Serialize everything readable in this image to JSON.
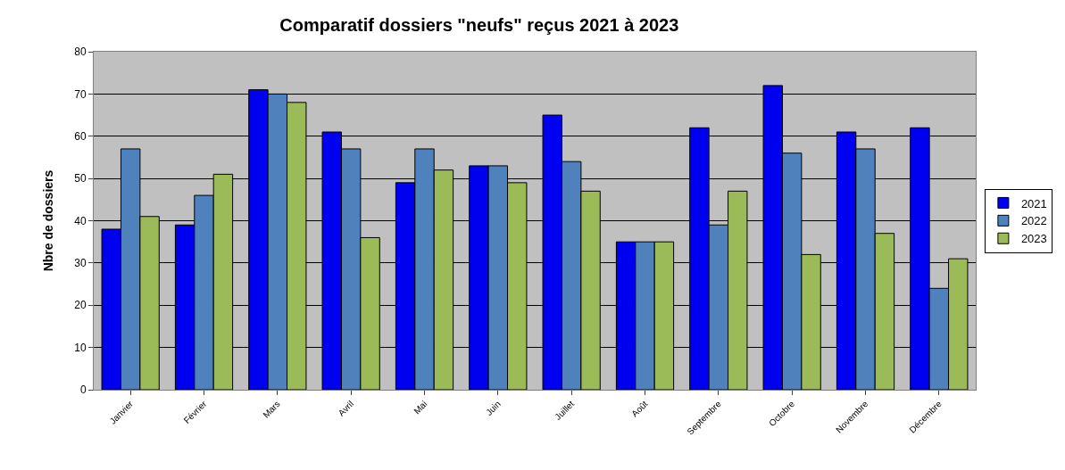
{
  "chart_data": {
    "type": "bar",
    "title": "Comparatif dossiers \"neufs\" reçus 2021 à 2023",
    "ylabel": "Nbre de dossiers",
    "categories": [
      "Janvier",
      "Février",
      "Mars",
      "Avril",
      "Mai",
      "Juin",
      "Juillet",
      "Août",
      "Septembre",
      "Octobre",
      "Novembre",
      "Décembre"
    ],
    "series": [
      {
        "name": "2021",
        "color": "#0000f0",
        "values": [
          38,
          39,
          71,
          61,
          49,
          53,
          65,
          35,
          62,
          72,
          61,
          62
        ]
      },
      {
        "name": "2022",
        "color": "#4f81bd",
        "values": [
          57,
          46,
          70,
          57,
          57,
          53,
          54,
          35,
          39,
          56,
          57,
          24
        ]
      },
      {
        "name": "2023",
        "color": "#9bbb59",
        "values": [
          41,
          51,
          68,
          36,
          52,
          49,
          47,
          35,
          47,
          32,
          37,
          31
        ]
      }
    ],
    "ylim": [
      0,
      80
    ],
    "yticks": [
      0,
      10,
      20,
      30,
      40,
      50,
      60,
      70,
      80
    ],
    "grid": "y",
    "legend": "right"
  }
}
